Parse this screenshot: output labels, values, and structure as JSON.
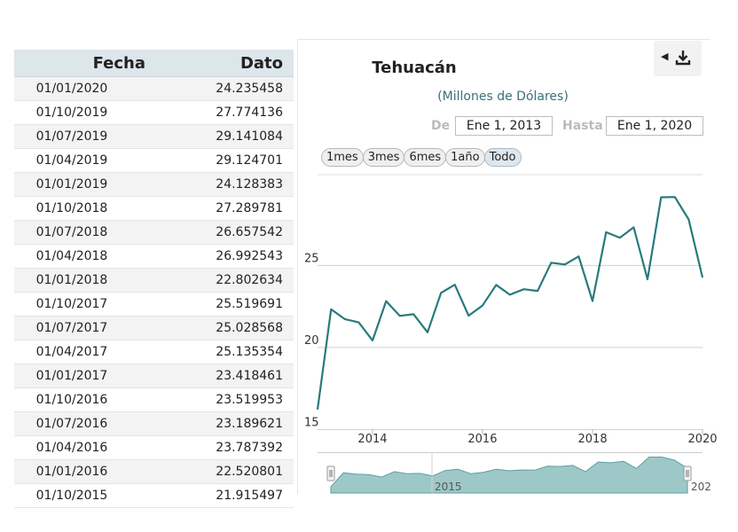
{
  "table": {
    "headers": [
      "Fecha",
      "Dato"
    ],
    "rows": [
      [
        "01/01/2020",
        "24.235458"
      ],
      [
        "01/10/2019",
        "27.774136"
      ],
      [
        "01/07/2019",
        "29.141084"
      ],
      [
        "01/04/2019",
        "29.124701"
      ],
      [
        "01/01/2019",
        "24.128383"
      ],
      [
        "01/10/2018",
        "27.289781"
      ],
      [
        "01/07/2018",
        "26.657542"
      ],
      [
        "01/04/2018",
        "26.992543"
      ],
      [
        "01/01/2018",
        "22.802634"
      ],
      [
        "01/10/2017",
        "25.519691"
      ],
      [
        "01/07/2017",
        "25.028568"
      ],
      [
        "01/04/2017",
        "25.135354"
      ],
      [
        "01/01/2017",
        "23.418461"
      ],
      [
        "01/10/2016",
        "23.519953"
      ],
      [
        "01/07/2016",
        "23.189621"
      ],
      [
        "01/04/2016",
        "23.787392"
      ],
      [
        "01/01/2016",
        "22.520801"
      ],
      [
        "01/10/2015",
        "21.915497"
      ]
    ]
  },
  "chart": {
    "title": "Tehuacán",
    "subtitle": "(Millones de Dólares)",
    "range_from_label": "De",
    "range_from_value": "Ene 1, 2013",
    "range_to_label": "Hasta",
    "range_to_value": "Ene 1, 2020",
    "range_buttons": [
      "1mes",
      "3mes",
      "6mes",
      "1año",
      "Todo"
    ],
    "active_range_button": "Todo",
    "export_icon": "download-icon",
    "navigator_label": "2015",
    "navigator_label_right": "202"
  },
  "chart_data": {
    "type": "line",
    "title": "Tehuacán",
    "subtitle": "(Millones de Dólares)",
    "x": [
      "2013-01-01",
      "2013-04-01",
      "2013-07-01",
      "2013-10-01",
      "2014-01-01",
      "2014-04-01",
      "2014-07-01",
      "2014-10-01",
      "2015-01-01",
      "2015-04-01",
      "2015-07-01",
      "2015-10-01",
      "2016-01-01",
      "2016-04-01",
      "2016-07-01",
      "2016-10-01",
      "2017-01-01",
      "2017-04-01",
      "2017-07-01",
      "2017-10-01",
      "2018-01-01",
      "2018-04-01",
      "2018-07-01",
      "2018-10-01",
      "2019-01-01",
      "2019-04-01",
      "2019-07-01",
      "2019-10-01",
      "2020-01-01"
    ],
    "series": [
      {
        "values": [
          16.2,
          22.3,
          21.7,
          21.5,
          20.4,
          22.8,
          21.9,
          22.0,
          20.9,
          23.3,
          23.8,
          21.915497,
          22.520801,
          23.787392,
          23.189621,
          23.519953,
          23.418461,
          25.135354,
          25.028568,
          25.519691,
          22.802634,
          26.992543,
          26.657542,
          27.289781,
          24.128383,
          29.124701,
          29.141084,
          27.774136,
          24.235458
        ],
        "color": "#2a7a7c"
      }
    ],
    "x_ticks": [
      "2014",
      "2016",
      "2018",
      "2020"
    ],
    "y_ticks": [
      15,
      20,
      25
    ],
    "ylim": [
      15,
      30.5
    ],
    "xlim": [
      "2013-01-01",
      "2020-01-01"
    ],
    "grid": true,
    "navigator": true,
    "navigator_fill": "#9ec8c8"
  }
}
